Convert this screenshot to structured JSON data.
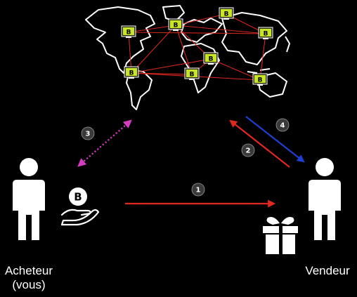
{
  "buyer": {
    "label_line1": "Acheteur",
    "label_line2": "(vous)"
  },
  "seller": {
    "label": "Vendeur"
  },
  "network": {
    "node_symbol": "B",
    "node_count": 8
  },
  "coin_symbol": "B",
  "steps": [
    {
      "number": "1",
      "color": "#e0281e",
      "style": "solid"
    },
    {
      "number": "2",
      "color": "#e0281e",
      "style": "solid"
    },
    {
      "number": "3",
      "color": "#d63cc0",
      "style": "dotted"
    },
    {
      "number": "4",
      "color": "#1f3fd0",
      "style": "solid"
    }
  ],
  "colors": {
    "background": "#000000",
    "figure": "#ffffff",
    "node_screen": "#c8e626",
    "network_link": "#d7261e",
    "map_outline": "#ffffff"
  }
}
